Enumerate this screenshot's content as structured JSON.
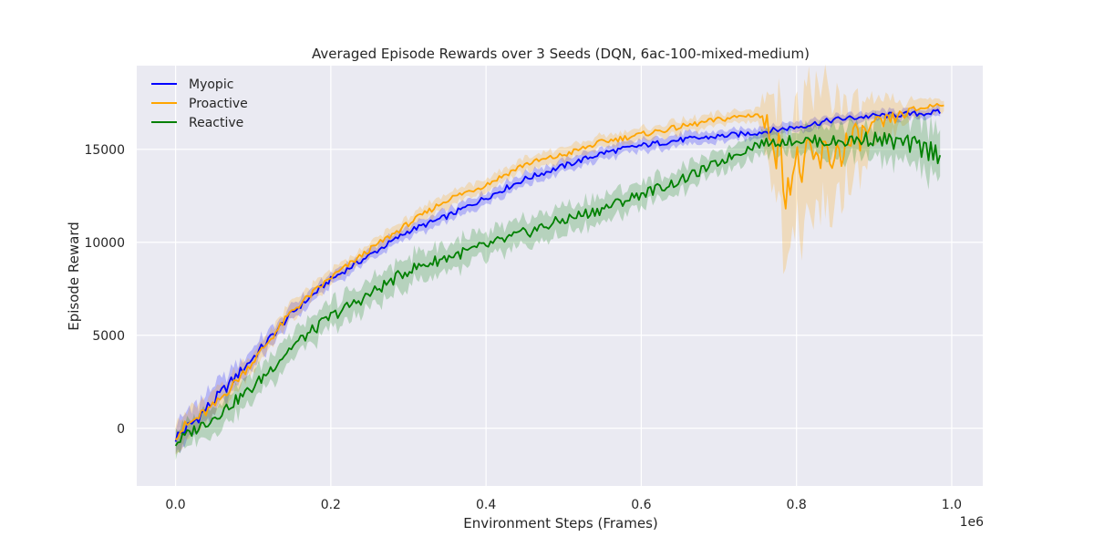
{
  "chart_data": {
    "type": "line",
    "title": "Averaged Episode Rewards over 3 Seeds (DQN, 6ac-100-mixed-medium)",
    "xlabel": "Environment Steps (Frames)",
    "ylabel": "Episode Reward",
    "x_offset_label": "1e6",
    "xlim": [
      -0.05,
      1.04
    ],
    "ylim": [
      -3100,
      19500
    ],
    "xticks": [
      0.0,
      0.2,
      0.4,
      0.6,
      0.8,
      1.0
    ],
    "xtick_labels": [
      "0.0",
      "0.2",
      "0.4",
      "0.6",
      "0.8",
      "1.0"
    ],
    "yticks": [
      0,
      5000,
      10000,
      15000
    ],
    "ytick_labels": [
      "0",
      "5000",
      "10000",
      "15000"
    ],
    "grid": true,
    "background": "#eaeaf2",
    "legend_position": "top-left",
    "series": [
      {
        "name": "Myopic",
        "color": "#0000ff",
        "x": [
          0.0,
          0.02,
          0.05,
          0.1,
          0.15,
          0.2,
          0.25,
          0.3,
          0.35,
          0.4,
          0.45,
          0.5,
          0.55,
          0.6,
          0.65,
          0.7,
          0.75,
          0.8,
          0.85,
          0.9,
          0.95,
          0.985
        ],
        "y": [
          -500,
          200,
          1500,
          3800,
          6200,
          8000,
          9300,
          10600,
          11400,
          12400,
          13400,
          14100,
          14800,
          15200,
          15500,
          15700,
          15900,
          16200,
          16600,
          16800,
          16900,
          17000
        ],
        "band": [
          1000,
          1000,
          900,
          700,
          500,
          400,
          400,
          400,
          400,
          400,
          400,
          400,
          400,
          400,
          400,
          350,
          350,
          350,
          300,
          300,
          300,
          300
        ]
      },
      {
        "name": "Proactive",
        "color": "#ffa500",
        "x": [
          0.0,
          0.02,
          0.05,
          0.1,
          0.15,
          0.2,
          0.25,
          0.3,
          0.35,
          0.4,
          0.45,
          0.5,
          0.55,
          0.6,
          0.65,
          0.7,
          0.75,
          0.77,
          0.785,
          0.8,
          0.82,
          0.85,
          0.9,
          0.95,
          0.99
        ],
        "y": [
          -300,
          300,
          1200,
          3600,
          6300,
          8100,
          9600,
          11000,
          12300,
          13100,
          14200,
          14700,
          15400,
          15800,
          16200,
          16600,
          16900,
          15800,
          13500,
          14000,
          14200,
          14800,
          16200,
          17100,
          17500
        ],
        "band": [
          1000,
          1000,
          800,
          600,
          600,
          500,
          450,
          450,
          450,
          450,
          450,
          450,
          400,
          400,
          400,
          400,
          400,
          3000,
          5000,
          4000,
          4200,
          3500,
          1500,
          600,
          400
        ]
      },
      {
        "name": "Reactive",
        "color": "#008000",
        "x": [
          0.0,
          0.02,
          0.05,
          0.1,
          0.15,
          0.2,
          0.25,
          0.3,
          0.35,
          0.4,
          0.45,
          0.5,
          0.55,
          0.6,
          0.65,
          0.7,
          0.75,
          0.8,
          0.85,
          0.9,
          0.95,
          0.985
        ],
        "y": [
          -800,
          -200,
          600,
          2200,
          4400,
          6000,
          7200,
          8500,
          9200,
          9800,
          10500,
          11200,
          11800,
          12600,
          13300,
          14300,
          15300,
          15500,
          15400,
          15600,
          15200,
          14800
        ],
        "band": [
          900,
          900,
          900,
          900,
          900,
          900,
          900,
          900,
          900,
          900,
          900,
          900,
          900,
          800,
          800,
          700,
          700,
          800,
          1000,
          1200,
          1500,
          1800
        ]
      }
    ]
  }
}
